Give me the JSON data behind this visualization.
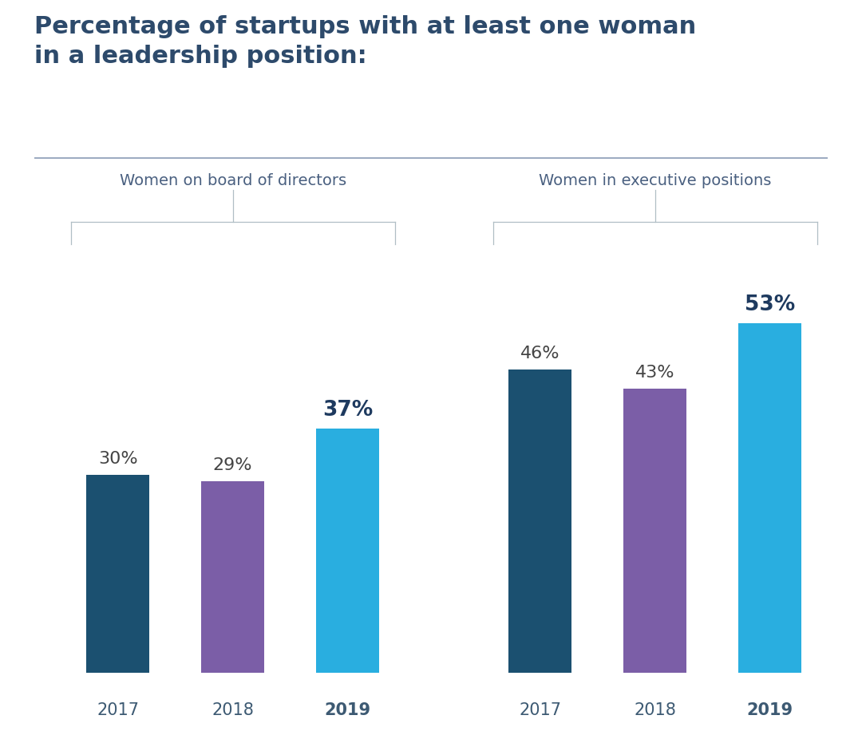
{
  "title_line1": "Percentage of startups with at least one woman",
  "title_line2": "in a leadership position:",
  "title_color": "#2d4a6b",
  "title_fontsize": 22,
  "separator_color": "#8a9bb5",
  "group1_label": "Women on board of directors",
  "group2_label": "Women in executive positions",
  "group_label_color": "#4a6080",
  "group_label_fontsize": 14,
  "years": [
    "2017",
    "2018",
    "2019"
  ],
  "board_values": [
    30,
    29,
    37
  ],
  "exec_values": [
    46,
    43,
    53
  ],
  "color_2017": "#1b5070",
  "color_2018": "#7b5ea7",
  "color_2019": "#29aee0",
  "bar_width": 0.55,
  "value_label_fontsize": 16,
  "value_label_fontsize_2019": 19,
  "value_label_color_normal": "#444444",
  "value_label_color_2019": "#1e3a5f",
  "year_label_fontsize": 15,
  "year_label_color": "#3d5a73",
  "background_color": "#ffffff",
  "bracket_color": "#b0bec5",
  "ylim": [
    0,
    65
  ]
}
